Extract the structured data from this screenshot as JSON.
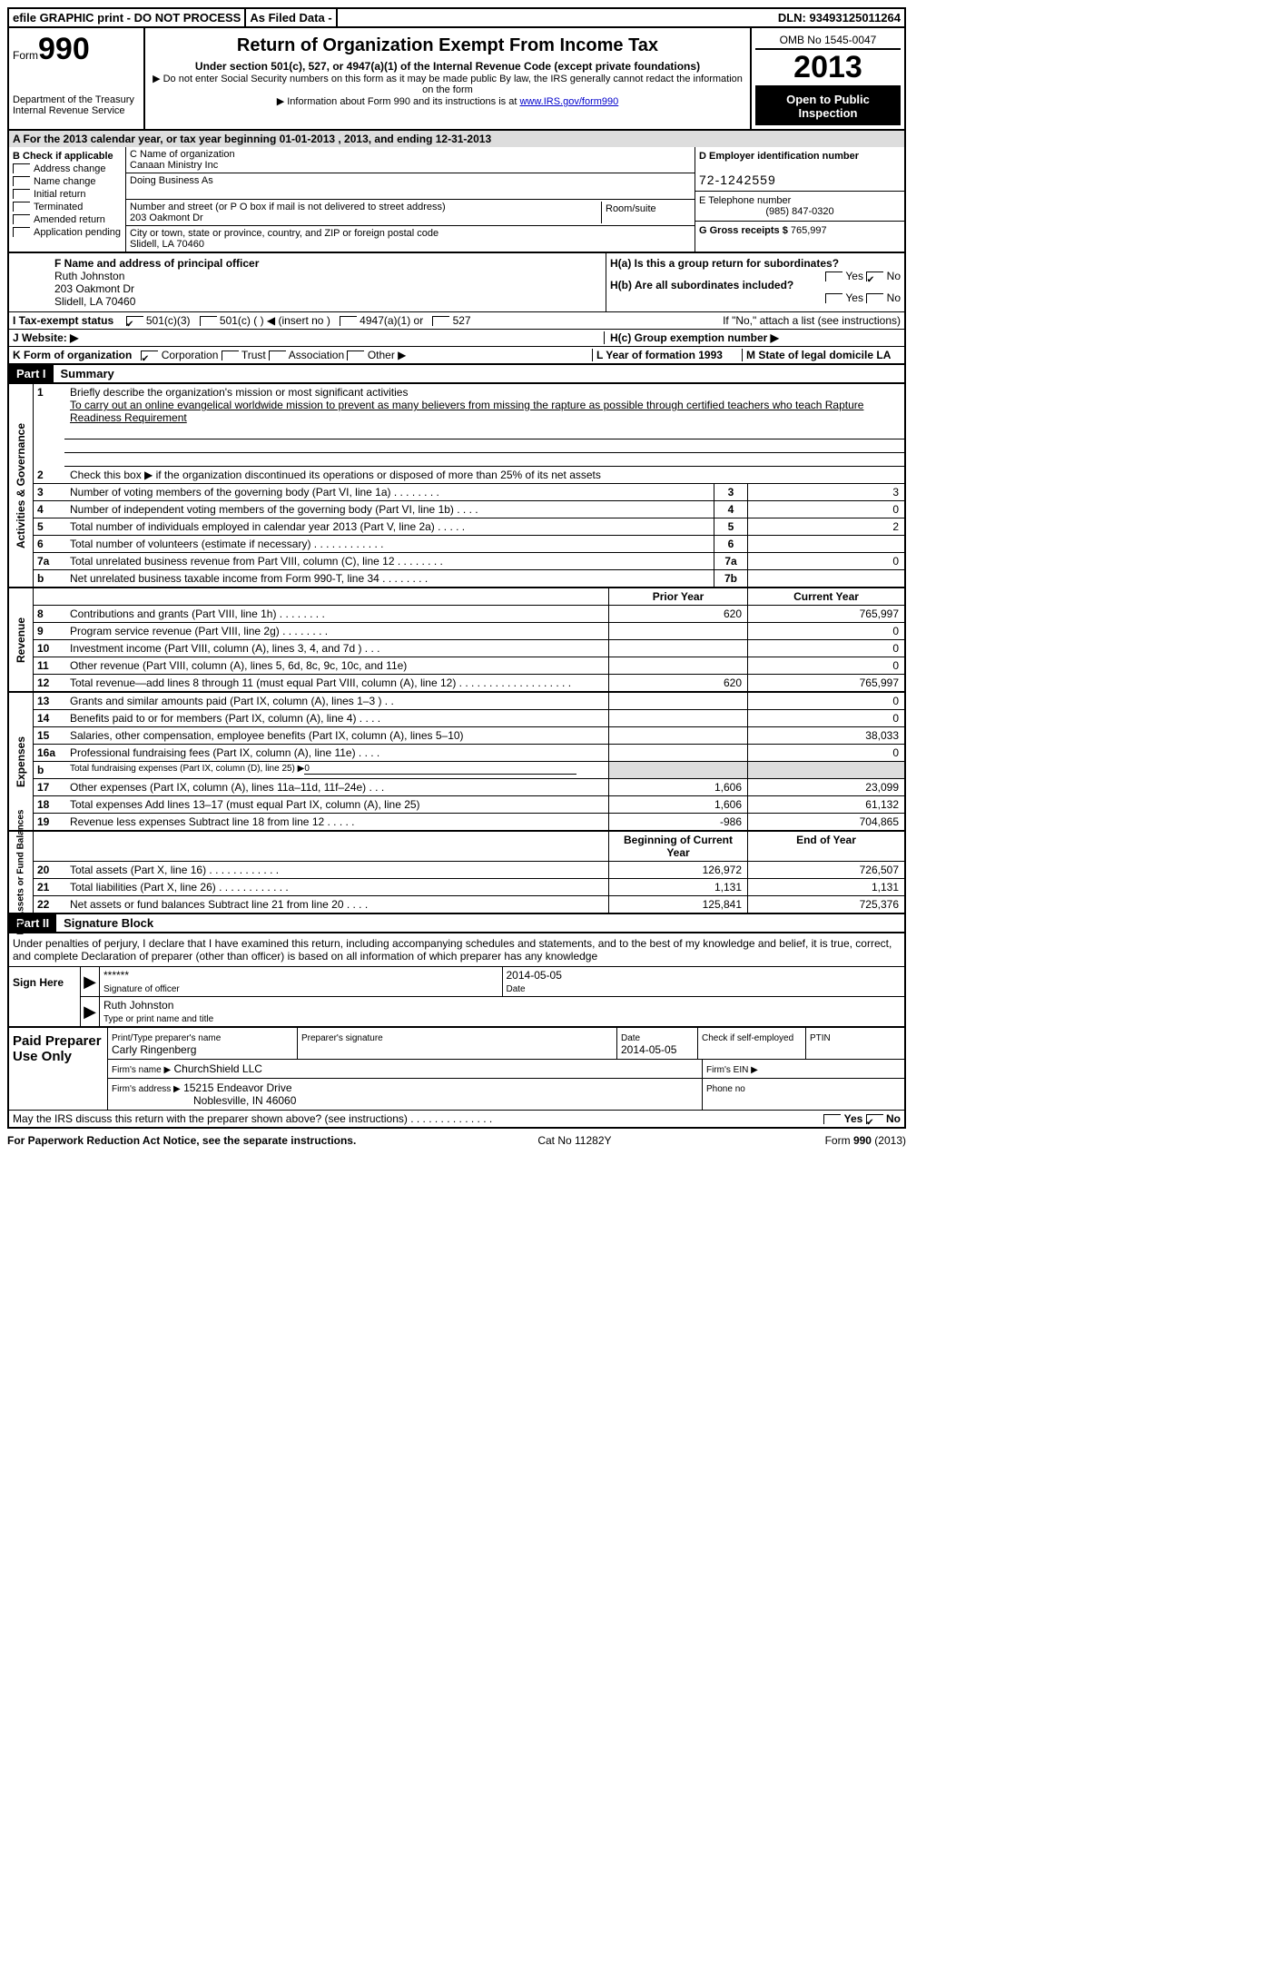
{
  "topbar": {
    "efile": "efile GRAPHIC print - DO NOT PROCESS",
    "asfiled": "As Filed Data -",
    "dln_label": "DLN:",
    "dln": "93493125011264"
  },
  "header": {
    "form_label": "Form",
    "form_no": "990",
    "dept1": "Department of the Treasury",
    "dept2": "Internal Revenue Service",
    "title": "Return of Organization Exempt From Income Tax",
    "sub1": "Under section 501(c), 527, or 4947(a)(1) of the Internal Revenue Code (except private foundations)",
    "sub2": "▶ Do not enter Social Security numbers on this form as it may be made public  By law, the IRS generally cannot redact the information on the form",
    "sub3a": "▶ Information about Form 990 and its instructions is at ",
    "sub3_link": "www.IRS.gov/form990",
    "omb": "OMB No 1545-0047",
    "year": "2013",
    "open": "Open to Public Inspection"
  },
  "rowA": "A  For the 2013 calendar year, or tax year beginning 01-01-2013     , 2013, and ending 12-31-2013",
  "boxB": {
    "label": "B  Check if applicable",
    "items": [
      "Address change",
      "Name change",
      "Initial return",
      "Terminated",
      "Amended return",
      "Application pending"
    ]
  },
  "boxC": {
    "name_label": "C Name of organization",
    "name": "Canaan Ministry Inc",
    "dba_label": "Doing Business As",
    "addr_label": "Number and street (or P O  box if mail is not delivered to street address)",
    "room_label": "Room/suite",
    "addr": "203 Oakmont Dr",
    "city_label": "City or town, state or province, country, and ZIP or foreign postal code",
    "city": "Slidell, LA  70460"
  },
  "boxD": {
    "label": "D Employer identification number",
    "ein": "72-1242559"
  },
  "boxE": {
    "label": "E Telephone number",
    "val": "(985) 847-0320"
  },
  "boxG": {
    "label": "G Gross receipts $",
    "val": "765,997"
  },
  "boxF": {
    "label": "F  Name and address of principal officer",
    "name": "Ruth Johnston",
    "addr1": "203 Oakmont Dr",
    "addr2": "Slidell, LA  70460"
  },
  "boxH": {
    "a": "H(a)  Is this a group return for subordinates?",
    "b": "H(b)  Are all subordinates included?",
    "ifno": "If \"No,\" attach a list  (see instructions)",
    "c": "H(c)   Group exemption number ▶",
    "yes": "Yes",
    "no": "No",
    "checked_no": "✔"
  },
  "lineI": "I   Tax-exempt status",
  "lineI_opts": [
    "501(c)(3)",
    "501(c) (  ) ◀ (insert no )",
    "4947(a)(1) or",
    "527"
  ],
  "lineJ": "J   Website: ▶",
  "lineK": {
    "label": "K Form of organization",
    "opts": [
      "Corporation",
      "Trust",
      "Association",
      "Other ▶"
    ],
    "L": "L Year of formation  1993",
    "M": "M State of legal domicile  LA"
  },
  "partI": {
    "tag": "Part I",
    "title": "Summary"
  },
  "summary": {
    "vlabel1": "Activities & Governance",
    "l1_label": "Briefly describe the organization's mission or most significant activities",
    "l1_text": "To carry out an online evangelical worldwide mission to prevent as many believers from missing the rapture as possible through certified teachers who teach Rapture Readiness Requirement",
    "l2": "Check this box ▶    if the organization discontinued its operations or disposed of more than 25% of its net assets",
    "rows_ag": [
      {
        "n": "3",
        "t": "Number of voting members of the governing body (Part VI, line 1a)  .   .   .   .   .   .   .   .",
        "k": "3",
        "v": "3"
      },
      {
        "n": "4",
        "t": "Number of independent voting members of the governing body (Part VI, line 1b)   .   .   .   .",
        "k": "4",
        "v": "0"
      },
      {
        "n": "5",
        "t": "Total number of individuals employed in calendar year 2013 (Part V, line 2a)   .   .   .   .   .",
        "k": "5",
        "v": "2"
      },
      {
        "n": "6",
        "t": "Total number of volunteers (estimate if necessary)  .   .   .   .   .   .   .   .   .   .   .   .",
        "k": "6",
        "v": ""
      },
      {
        "n": "7a",
        "t": "Total unrelated business revenue from Part VIII, column (C), line 12  .   .   .   .   .   .   .   .",
        "k": "7a",
        "v": "0"
      },
      {
        "n": "b",
        "t": "Net unrelated business taxable income from Form 990-T, line 34  .   .   .   .   .   .   .   .",
        "k": "7b",
        "v": ""
      }
    ],
    "vlabel2": "Revenue",
    "hdr_prior": "Prior Year",
    "hdr_curr": "Current Year",
    "rows_rev": [
      {
        "n": "8",
        "t": "Contributions and grants (Part VIII, line 1h)  .   .   .   .   .   .   .   .",
        "c1": "620",
        "c2": "765,997"
      },
      {
        "n": "9",
        "t": "Program service revenue (Part VIII, line 2g)   .   .   .   .   .   .   .   .",
        "c1": "",
        "c2": "0"
      },
      {
        "n": "10",
        "t": "Investment income (Part VIII, column (A), lines 3, 4, and 7d )  .   .   .",
        "c1": "",
        "c2": "0"
      },
      {
        "n": "11",
        "t": "Other revenue (Part VIII, column (A), lines 5, 6d, 8c, 9c, 10c, and 11e)",
        "c1": "",
        "c2": "0"
      },
      {
        "n": "12",
        "t": "Total revenue—add lines 8 through 11 (must equal Part VIII, column (A), line 12) .   .   .   .   .   .   .   .   .   .   .   .   .   .   .   .   .   .   .",
        "c1": "620",
        "c2": "765,997"
      }
    ],
    "vlabel3": "Expenses",
    "rows_exp": [
      {
        "n": "13",
        "t": "Grants and similar amounts paid (Part IX, column (A), lines 1–3 )  .   .",
        "c1": "",
        "c2": "0"
      },
      {
        "n": "14",
        "t": "Benefits paid to or for members (Part IX, column (A), line 4)  .   .   .   .",
        "c1": "",
        "c2": "0"
      },
      {
        "n": "15",
        "t": "Salaries, other compensation, employee benefits (Part IX, column (A), lines 5–10)",
        "c1": "",
        "c2": "38,033"
      },
      {
        "n": "16a",
        "t": "Professional fundraising fees (Part IX, column (A), line 11e)  .   .   .   .",
        "c1": "",
        "c2": "0"
      },
      {
        "n": "b",
        "t": "Total fundraising expenses (Part IX, column (D), line 25) ▶",
        "c1": "shade",
        "c2": "shade"
      },
      {
        "n": "17",
        "t": "Other expenses (Part IX, column (A), lines 11a–11d, 11f–24e)  .   .   .",
        "c1": "1,606",
        "c2": "23,099"
      },
      {
        "n": "18",
        "t": "Total expenses  Add lines 13–17 (must equal Part IX, column (A), line 25)",
        "c1": "1,606",
        "c2": "61,132"
      },
      {
        "n": "19",
        "t": "Revenue less expenses  Subtract line 18 from line 12   .   .   .   .   .",
        "c1": "-986",
        "c2": "704,865"
      }
    ],
    "vlabel4": "Net Assets or Fund Balances",
    "hdr_beg": "Beginning of Current Year",
    "hdr_end": "End of Year",
    "rows_net": [
      {
        "n": "20",
        "t": "Total assets (Part X, line 16)  .   .   .   .   .   .   .   .   .   .   .   .",
        "c1": "126,972",
        "c2": "726,507"
      },
      {
        "n": "21",
        "t": "Total liabilities (Part X, line 26)   .   .   .   .   .   .   .   .   .   .   .   .",
        "c1": "1,131",
        "c2": "1,131"
      },
      {
        "n": "22",
        "t": "Net assets or fund balances  Subtract line 21 from line 20   .   .   .   .",
        "c1": "125,841",
        "c2": "725,376"
      }
    ]
  },
  "partII": {
    "tag": "Part II",
    "title": "Signature Block"
  },
  "sig": {
    "para": "Under penalties of perjury, I declare that I have examined this return, including accompanying schedules and statements, and to the best of my knowledge and belief, it is true, correct, and complete  Declaration of preparer (other than officer) is based on all information of which preparer has any knowledge",
    "sign_here": "Sign Here",
    "stars": "******",
    "sig_of_officer": "Signature of officer",
    "date": "2014-05-05",
    "date_label": "Date",
    "name": "Ruth Johnston",
    "type_label": "Type or print name and title"
  },
  "paid": {
    "label": "Paid Preparer Use Only",
    "prep_name_label": "Print/Type preparer's name",
    "prep_name": "Carly Ringenberg",
    "prep_sig_label": "Preparer's signature",
    "date_label": "Date",
    "date": "2014-05-05",
    "check_label": "Check      if self-employed",
    "ptin_label": "PTIN",
    "firm_name_label": "Firm's name     ▶",
    "firm_name": "ChurchShield LLC",
    "firm_ein_label": "Firm's EIN ▶",
    "firm_addr_label": "Firm's address ▶",
    "firm_addr1": "15215 Endeavor Drive",
    "firm_addr2": "Noblesville, IN  46060",
    "phone_label": "Phone no"
  },
  "discuss": "May the IRS discuss this return with the preparer shown above? (see instructions)   .   .   .   .   .   .   .   .   .   .   .   .   .   .",
  "yes": "Yes",
  "no": "No",
  "footer": {
    "left": "For Paperwork Reduction Act Notice, see the separate instructions.",
    "mid": "Cat No 11282Y",
    "right": "Form 990 (2013)"
  }
}
